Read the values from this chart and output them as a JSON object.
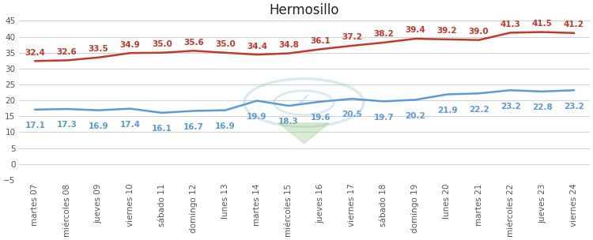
{
  "title": "Hermosillo",
  "categories": [
    "martes 07",
    "miércoles 08",
    "jueves 09",
    "viernes 10",
    "sábado 11",
    "domingo 12",
    "lunes 13",
    "martes 14",
    "miércoles 15",
    "jueves 16",
    "viernes 17",
    "sábado 18",
    "domingo 19",
    "lunes 20",
    "martes 21",
    "miércoles 22",
    "jueves 23",
    "viernes 24"
  ],
  "high_temps": [
    32.4,
    32.6,
    33.5,
    34.9,
    35.0,
    35.6,
    35.0,
    34.4,
    34.8,
    36.1,
    37.2,
    38.2,
    39.4,
    39.2,
    39.0,
    41.3,
    41.5,
    41.2
  ],
  "low_temps": [
    17.1,
    17.3,
    16.9,
    17.4,
    16.1,
    16.7,
    16.9,
    19.9,
    18.3,
    19.6,
    20.5,
    19.7,
    20.2,
    21.9,
    22.2,
    23.2,
    22.8,
    23.2
  ],
  "high_color": "#c0392b",
  "low_color": "#5b9bd5",
  "bg_color": "#ffffff",
  "grid_color": "#d0d0d0",
  "ylim": [
    -5,
    45
  ],
  "yticks": [
    -5,
    0,
    5,
    10,
    15,
    20,
    25,
    30,
    35,
    40,
    45
  ],
  "title_fontsize": 12,
  "label_fontsize": 7.5,
  "tick_fontsize": 7.5
}
